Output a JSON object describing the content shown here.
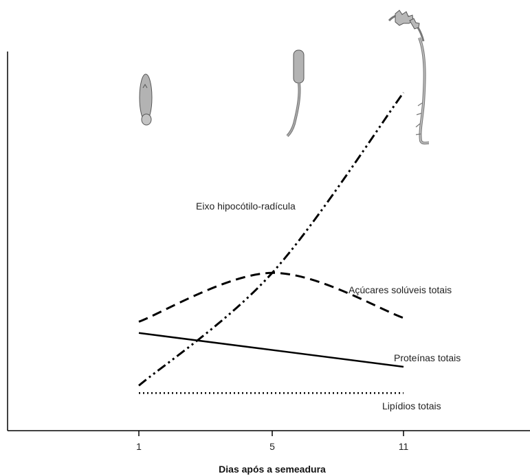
{
  "chart_data": {
    "type": "line",
    "xlabel": "Dias após a semeadura",
    "ylabel": "",
    "x": [
      1,
      5,
      11
    ],
    "x_ticks": [
      "1",
      "5",
      "11"
    ],
    "y_range": [
      0,
      100
    ],
    "grid": false,
    "legend": "none (series labelled inline)",
    "series": [
      {
        "name": "Eixo hipocótilo-radícula",
        "style": "dash-dot-dot",
        "values": [
          12,
          42,
          90
        ]
      },
      {
        "name": "Açúcares solúveis totais",
        "style": "dashed",
        "values": [
          29,
          42,
          30
        ]
      },
      {
        "name": "Proteínas totais",
        "style": "solid",
        "values": [
          26,
          21,
          17
        ]
      },
      {
        "name": "Lipídios totais",
        "style": "dotted",
        "values": [
          10,
          10,
          10
        ]
      }
    ],
    "illustrations": [
      "seed-day-1-icon",
      "seedling-day-5-icon",
      "seedling-day-11-icon"
    ]
  }
}
